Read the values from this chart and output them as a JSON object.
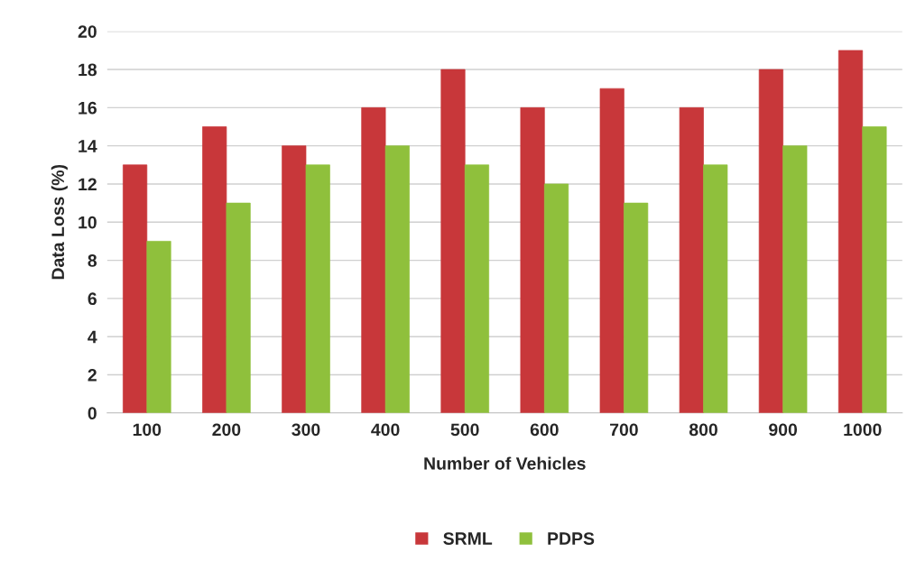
{
  "chart_data": {
    "type": "bar",
    "xlabel": "Number of Vehicles",
    "ylabel": "Data Loss (%)",
    "categories": [
      "100",
      "200",
      "300",
      "400",
      "500",
      "600",
      "700",
      "800",
      "900",
      "1000"
    ],
    "series": [
      {
        "name": "SRML",
        "color": "#c8373a",
        "values": [
          13,
          15,
          14,
          16,
          18,
          16,
          17,
          16,
          18,
          19
        ]
      },
      {
        "name": "PDPS",
        "color": "#8fc03c",
        "values": [
          9,
          11,
          13,
          14,
          13,
          12,
          11,
          13,
          14,
          15
        ]
      }
    ],
    "ylim": [
      0,
      20
    ],
    "yticks": [
      0,
      2,
      4,
      6,
      8,
      10,
      12,
      14,
      16,
      18,
      20
    ],
    "grid": "y",
    "legend": "bottom"
  }
}
